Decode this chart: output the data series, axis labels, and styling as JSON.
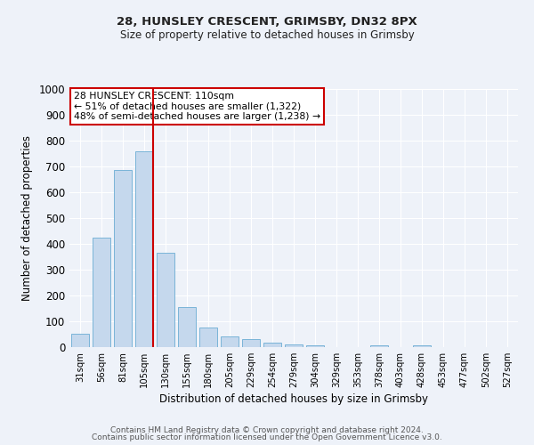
{
  "title": "28, HUNSLEY CRESCENT, GRIMSBY, DN32 8PX",
  "subtitle": "Size of property relative to detached houses in Grimsby",
  "xlabel": "Distribution of detached houses by size in Grimsby",
  "ylabel": "Number of detached properties",
  "bar_labels": [
    "31sqm",
    "56sqm",
    "81sqm",
    "105sqm",
    "130sqm",
    "155sqm",
    "180sqm",
    "205sqm",
    "229sqm",
    "254sqm",
    "279sqm",
    "304sqm",
    "329sqm",
    "353sqm",
    "378sqm",
    "403sqm",
    "428sqm",
    "453sqm",
    "477sqm",
    "502sqm",
    "527sqm"
  ],
  "bar_values": [
    52,
    425,
    685,
    760,
    365,
    155,
    75,
    42,
    30,
    18,
    11,
    8,
    0,
    0,
    8,
    0,
    8,
    0,
    0,
    0,
    0
  ],
  "bar_color": "#c5d8ed",
  "bar_edge_color": "#7ab4d8",
  "background_color": "#eef2f9",
  "grid_color": "#ffffff",
  "vline_color": "#cc0000",
  "vline_x_index": 3,
  "annotation_text": "28 HUNSLEY CRESCENT: 110sqm\n← 51% of detached houses are smaller (1,322)\n48% of semi-detached houses are larger (1,238) →",
  "annotation_box_color": "#ffffff",
  "annotation_box_edge": "#cc0000",
  "ylim": [
    0,
    1000
  ],
  "yticks": [
    0,
    100,
    200,
    300,
    400,
    500,
    600,
    700,
    800,
    900,
    1000
  ],
  "footer1": "Contains HM Land Registry data © Crown copyright and database right 2024.",
  "footer2": "Contains public sector information licensed under the Open Government Licence v3.0."
}
